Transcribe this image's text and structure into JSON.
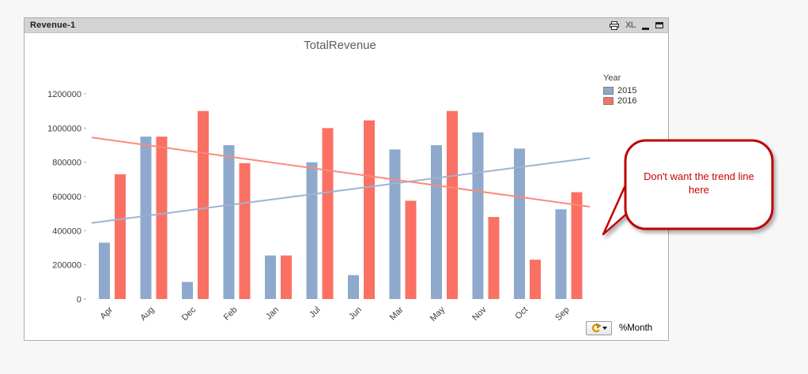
{
  "window": {
    "title": "Revenue-1",
    "export_excel_label": "XL"
  },
  "chart_data": {
    "type": "bar",
    "title": "TotalRevenue",
    "legend_title": "Year",
    "legend_position": "right",
    "xlabel": "%Month",
    "ylabel": "",
    "ylim": [
      0,
      1200000
    ],
    "ytick_step": 200000,
    "grid": false,
    "categories": [
      "Apr",
      "Aug",
      "Dec",
      "Feb",
      "Jan",
      "Jul",
      "Jun",
      "Mar",
      "May",
      "Nov",
      "Oct",
      "Sep"
    ],
    "series": [
      {
        "name": "2015",
        "color": "#8EA9CB",
        "values": [
          330000,
          950000,
          100000,
          900000,
          255000,
          800000,
          140000,
          875000,
          900000,
          975000,
          880000,
          525000
        ]
      },
      {
        "name": "2016",
        "color": "#FA7063",
        "values": [
          730000,
          950000,
          1100000,
          795000,
          255000,
          1000000,
          1045000,
          575000,
          1100000,
          480000,
          230000,
          625000
        ]
      }
    ],
    "trendlines": [
      {
        "series": "2015",
        "type": "linear",
        "color": "#9DB3D4",
        "start": 445000,
        "end": 825000
      },
      {
        "series": "2016",
        "type": "linear",
        "color": "#FB8A7C",
        "start": 945000,
        "end": 540000
      }
    ]
  },
  "callout": {
    "text": "Don't want the trend line here",
    "color": "#CC0000",
    "border_color": "#C00000"
  }
}
